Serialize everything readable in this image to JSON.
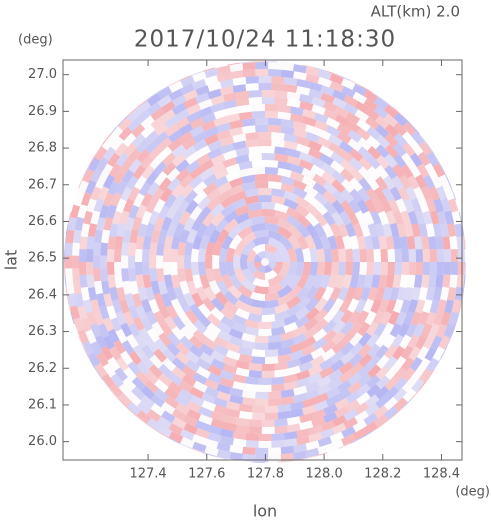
{
  "chart_data": {
    "type": "radar-ppi",
    "title": "2017/10/24 11:18:30",
    "subtitle": "ALT(km) 2.0",
    "x_label": "lon",
    "y_label": "lat",
    "x_unit": "(deg)",
    "y_unit": "(deg)",
    "xlim": [
      127.11,
      128.47
    ],
    "ylim": [
      25.95,
      27.04
    ],
    "xticks": [
      127.4,
      127.6,
      127.8,
      {
        "value": 128.0,
        "label": "128.0"
      },
      128.2,
      128.4
    ],
    "yticks": [
      {
        "value": 26.0,
        "label": "26.0"
      },
      26.1,
      26.2,
      26.3,
      26.4,
      26.5,
      26.6,
      26.7,
      26.8,
      26.9,
      {
        "value": 27.0,
        "label": "27.0"
      }
    ]
  }
}
